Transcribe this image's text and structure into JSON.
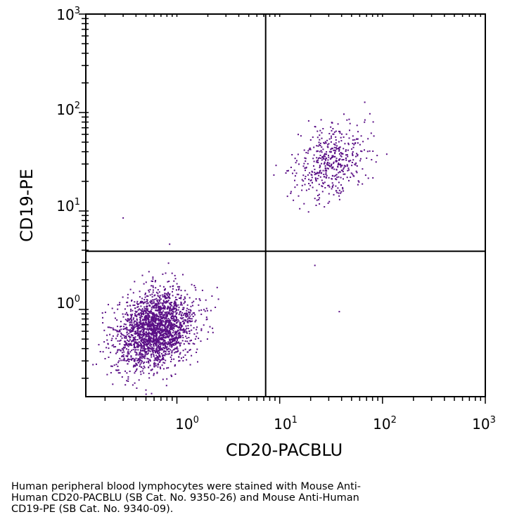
{
  "chart_data": {
    "type": "scatter",
    "xlabel": "CD20-PACBLU",
    "ylabel": "CD19-PE",
    "xscale": "log",
    "yscale": "log",
    "xlim": [
      0.13,
      1000
    ],
    "ylim": [
      0.13,
      1000
    ],
    "x_ticks": [
      {
        "base": "10",
        "exp": "0"
      },
      {
        "base": "10",
        "exp": "1"
      },
      {
        "base": "10",
        "exp": "2"
      },
      {
        "base": "10",
        "exp": "3"
      }
    ],
    "y_ticks": [
      {
        "base": "10",
        "exp": "0"
      },
      {
        "base": "10",
        "exp": "1"
      },
      {
        "base": "10",
        "exp": "2"
      },
      {
        "base": "10",
        "exp": "3"
      }
    ],
    "point_color": "#5a0f86",
    "quadrant_gate": {
      "x": 7.3,
      "y": 3.9
    },
    "populations": [
      {
        "center": [
          0.62,
          0.62
        ],
        "spread": [
          0.19,
          0.2
        ],
        "count": 2200
      },
      {
        "center": [
          32,
          32
        ],
        "spread": [
          0.17,
          0.19
        ],
        "count": 480
      }
    ],
    "outliers": [
      [
        0.3,
        8.5
      ],
      [
        22,
        2.8
      ],
      [
        38,
        0.95
      ],
      [
        0.85,
        4.6
      ]
    ]
  },
  "caption": {
    "line1": "Human peripheral blood lymphocytes were stained with Mouse Anti-",
    "line2": "Human CD20-PACBLU (SB Cat. No. 9350-26) and Mouse Anti-Human",
    "line3": "CD19-PE (SB Cat. No. 9340-09)."
  }
}
